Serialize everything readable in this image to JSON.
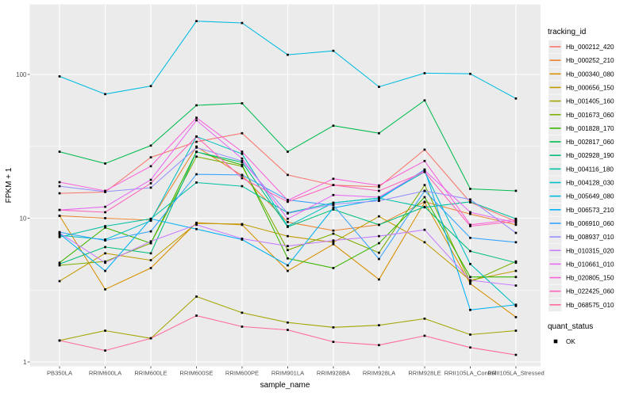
{
  "figure": {
    "y_axis": {
      "label": "FPKM + 1",
      "tick_labels": [
        "100",
        "10",
        "1"
      ]
    },
    "x_axis": {
      "label": "sample_name"
    },
    "legend": {
      "tracking_title": "tracking_id",
      "quant_title": "quant_status",
      "quant_items": [
        {
          "label": "OK",
          "marker": "black-square"
        }
      ]
    },
    "panel_bg": "#EBEBEB",
    "gridline_color": "#FFFFFF",
    "axis_text_color": "#4D4D4D",
    "point_color": "#000000"
  },
  "chart_data": {
    "type": "line",
    "title": "",
    "xlabel": "sample_name",
    "ylabel": "FPKM + 1",
    "y_scale": "log10",
    "ylim": [
      1,
      305
    ],
    "y_ticks": [
      100,
      10,
      1
    ],
    "grid": true,
    "legend_position": "right",
    "legend_titles": {
      "color": "tracking_id",
      "shape": "quant_status"
    },
    "quant_status_values": [
      "OK"
    ],
    "point_marker": "filled-square",
    "categories": [
      "PB350LA",
      "RRIM600LA",
      "RRIM600LE",
      "RRIM600SE",
      "RRIM600PE",
      "RRIM901LA",
      "RRIM928BA",
      "RRIM928LA",
      "RRIM928LE",
      "RRII105LA_Control",
      "RRII105LA_Stressed"
    ],
    "series": [
      {
        "name": "Hb_000212_420",
        "color": "#F8766D",
        "values": [
          14.9,
          15.2,
          26.5,
          34,
          39,
          20,
          17,
          16.5,
          30,
          12.9,
          9.5
        ]
      },
      {
        "name": "Hb_000252_210",
        "color": "#EA8331",
        "values": [
          10.4,
          10.0,
          9.7,
          31.5,
          19.8,
          9.4,
          8.2,
          9.0,
          13.0,
          10.7,
          9.0
        ]
      },
      {
        "name": "Hb_000340_080",
        "color": "#D89000",
        "values": [
          10.4,
          3.2,
          4.5,
          9.3,
          9.0,
          4.3,
          6.6,
          3.75,
          12.9,
          3.5,
          2.05
        ]
      },
      {
        "name": "Hb_000656_150",
        "color": "#C09B00",
        "values": [
          3.65,
          5.7,
          5.1,
          9.2,
          9.1,
          7.5,
          6.8,
          10.3,
          6.8,
          3.7,
          4.3
        ]
      },
      {
        "name": "Hb_001405_160",
        "color": "#A3A500",
        "values": [
          1.41,
          1.65,
          1.46,
          2.85,
          2.2,
          1.88,
          1.74,
          1.8,
          2.0,
          1.55,
          1.65
        ]
      },
      {
        "name": "Hb_001673_060",
        "color": "#7CAE00",
        "values": [
          4.7,
          5.0,
          6.7,
          26.8,
          23,
          6.0,
          7.8,
          5.75,
          17.0,
          3.6,
          5.0
        ]
      },
      {
        "name": "Hb_001828_170",
        "color": "#39B600",
        "values": [
          4.9,
          8.6,
          6.7,
          29,
          23.5,
          5.25,
          4.5,
          6.7,
          14.0,
          3.9,
          3.9
        ]
      },
      {
        "name": "Hb_002817_060",
        "color": "#00BB4E",
        "values": [
          29,
          24,
          32,
          61,
          63,
          29,
          44,
          39,
          66,
          16,
          15.5
        ]
      },
      {
        "name": "Hb_002928_190",
        "color": "#00BF7D",
        "values": [
          4.8,
          6.3,
          5.7,
          28.9,
          24.5,
          8.7,
          11.5,
          9.0,
          12.0,
          5.9,
          4.9
        ]
      },
      {
        "name": "Hb_004116_180",
        "color": "#00C1A3",
        "values": [
          7.4,
          8.8,
          9.9,
          17.7,
          16.7,
          10.9,
          12.8,
          13.8,
          11.9,
          13.0,
          9.9
        ]
      },
      {
        "name": "Hb_004128_030",
        "color": "#00BFC4",
        "values": [
          7.6,
          7.1,
          9.6,
          37,
          28,
          8.8,
          12.8,
          13.8,
          21.0,
          4.8,
          2.45
        ]
      },
      {
        "name": "Hb_005649_080",
        "color": "#00BAE0",
        "values": [
          97,
          73,
          83,
          235,
          228,
          137,
          146,
          82,
          102,
          101,
          68
        ]
      },
      {
        "name": "Hb_006573_210",
        "color": "#00B0F6",
        "values": [
          7.8,
          4.3,
          9.9,
          8.4,
          7.1,
          4.7,
          11.8,
          13.5,
          21.8,
          2.3,
          2.5
        ]
      },
      {
        "name": "Hb_006910_060",
        "color": "#35A2FF",
        "values": [
          8.0,
          7.0,
          8.1,
          20.2,
          20,
          13.4,
          12.3,
          5.2,
          15.5,
          7.3,
          6.8
        ]
      },
      {
        "name": "Hb_008937_010",
        "color": "#9590FF",
        "values": [
          16.7,
          15.3,
          16.3,
          31,
          25,
          10.8,
          12.5,
          13.2,
          15.5,
          13.5,
          7.9
        ]
      },
      {
        "name": "Hb_010315_020",
        "color": "#C77CFF",
        "values": [
          7.9,
          4.9,
          6.9,
          9.0,
          7.2,
          6.4,
          7.0,
          7.5,
          8.3,
          3.7,
          3.4
        ]
      },
      {
        "name": "Hb_010661_010",
        "color": "#E76BF3",
        "values": [
          11.4,
          12.0,
          18.5,
          48,
          26,
          9.9,
          14.5,
          14.0,
          21.5,
          11.0,
          9.3
        ]
      },
      {
        "name": "Hb_020805_150",
        "color": "#FA62DB",
        "values": [
          17.8,
          15.5,
          23,
          50,
          29,
          13.3,
          18.8,
          16.9,
          25,
          9.0,
          9.8
        ]
      },
      {
        "name": "Hb_022425_060",
        "color": "#FF62BC",
        "values": [
          11.4,
          11.0,
          17.5,
          37,
          19,
          13.0,
          17.0,
          15.5,
          21.0,
          8.8,
          9.5
        ]
      },
      {
        "name": "Hb_068575_010",
        "color": "#FF6A98",
        "values": [
          1.41,
          1.2,
          1.46,
          2.1,
          1.76,
          1.67,
          1.38,
          1.31,
          1.52,
          1.26,
          1.12
        ]
      }
    ]
  }
}
